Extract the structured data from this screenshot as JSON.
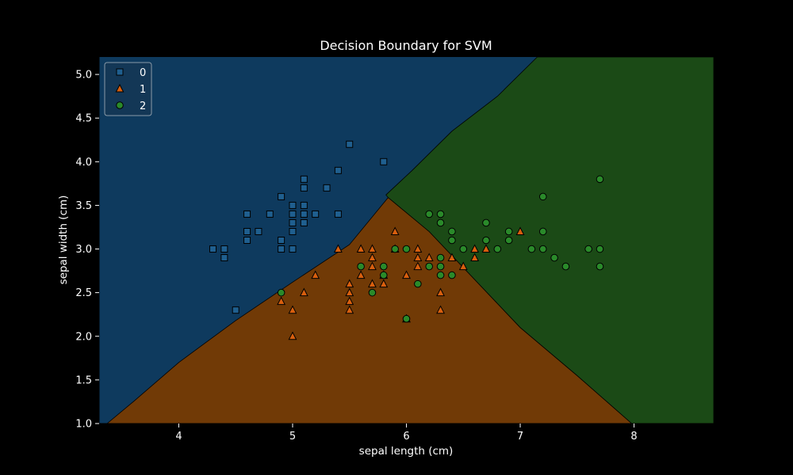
{
  "chart_data": {
    "type": "scatter",
    "title": "Decision Boundary for SVM",
    "xlabel": "sepal length (cm)",
    "ylabel": "sepal width (cm)",
    "xlim": [
      3.3,
      8.7
    ],
    "ylim": [
      1.0,
      5.2
    ],
    "xticks": [
      "4",
      "5",
      "6",
      "7",
      "8"
    ],
    "yticks": [
      "1.0",
      "1.5",
      "2.0",
      "2.5",
      "3.0",
      "3.5",
      "4.0",
      "4.5",
      "5.0"
    ],
    "legend_position": "top-left",
    "grid": false,
    "regions": [
      {
        "class": "0",
        "color": "#0e3a5e"
      },
      {
        "class": "1",
        "color": "#713a06"
      },
      {
        "class": "2",
        "color": "#1b4a16"
      }
    ],
    "boundaries": {
      "between_0_and_1": [
        [
          3.37,
          1.0
        ],
        [
          3.6,
          1.25
        ],
        [
          4.0,
          1.7
        ],
        [
          4.5,
          2.18
        ],
        [
          5.0,
          2.62
        ],
        [
          5.5,
          3.05
        ],
        [
          5.84,
          3.59
        ]
      ],
      "between_1_and_2": [
        [
          5.84,
          3.59
        ],
        [
          6.2,
          3.2
        ],
        [
          6.6,
          2.65
        ],
        [
          7.0,
          2.1
        ],
        [
          7.5,
          1.55
        ],
        [
          7.98,
          1.0
        ]
      ],
      "between_0_and_2": [
        [
          5.84,
          3.59
        ],
        [
          5.82,
          3.62
        ],
        [
          6.05,
          3.9
        ],
        [
          6.4,
          4.35
        ],
        [
          6.8,
          4.75
        ],
        [
          7.15,
          5.2
        ]
      ]
    },
    "series": [
      {
        "name": "0",
        "marker": "square",
        "color": "#1f5f8f",
        "points": [
          [
            4.3,
            3.0
          ],
          [
            4.4,
            3.0
          ],
          [
            4.4,
            2.9
          ],
          [
            4.5,
            2.3
          ],
          [
            4.6,
            3.4
          ],
          [
            4.6,
            3.2
          ],
          [
            4.6,
            3.1
          ],
          [
            4.7,
            3.2
          ],
          [
            4.8,
            3.4
          ],
          [
            4.9,
            3.6
          ],
          [
            4.9,
            3.1
          ],
          [
            4.9,
            3.0
          ],
          [
            5.0,
            3.5
          ],
          [
            5.0,
            3.4
          ],
          [
            5.0,
            3.3
          ],
          [
            5.0,
            3.2
          ],
          [
            5.0,
            3.0
          ],
          [
            5.1,
            3.8
          ],
          [
            5.1,
            3.7
          ],
          [
            5.1,
            3.5
          ],
          [
            5.1,
            3.4
          ],
          [
            5.1,
            3.3
          ],
          [
            5.2,
            3.4
          ],
          [
            5.3,
            3.7
          ],
          [
            5.4,
            3.9
          ],
          [
            5.4,
            3.4
          ],
          [
            5.5,
            4.2
          ],
          [
            5.8,
            4.0
          ]
        ]
      },
      {
        "name": "1",
        "marker": "triangle",
        "color": "#d85f0e",
        "points": [
          [
            4.9,
            2.4
          ],
          [
            5.0,
            2.3
          ],
          [
            5.0,
            2.0
          ],
          [
            5.1,
            2.5
          ],
          [
            5.2,
            2.7
          ],
          [
            5.4,
            3.0
          ],
          [
            5.5,
            2.6
          ],
          [
            5.5,
            2.5
          ],
          [
            5.5,
            2.4
          ],
          [
            5.5,
            2.3
          ],
          [
            5.6,
            3.0
          ],
          [
            5.6,
            2.7
          ],
          [
            5.7,
            3.0
          ],
          [
            5.7,
            2.9
          ],
          [
            5.7,
            2.8
          ],
          [
            5.7,
            2.6
          ],
          [
            5.8,
            2.7
          ],
          [
            5.8,
            2.6
          ],
          [
            5.9,
            3.2
          ],
          [
            5.9,
            3.0
          ],
          [
            6.0,
            2.7
          ],
          [
            6.0,
            2.2
          ],
          [
            6.1,
            3.0
          ],
          [
            6.1,
            2.9
          ],
          [
            6.1,
            2.8
          ],
          [
            6.2,
            2.9
          ],
          [
            6.3,
            2.5
          ],
          [
            6.3,
            2.3
          ],
          [
            6.4,
            2.9
          ],
          [
            6.5,
            2.8
          ],
          [
            6.6,
            3.0
          ],
          [
            6.6,
            2.9
          ],
          [
            6.7,
            3.0
          ],
          [
            7.0,
            3.2
          ]
        ]
      },
      {
        "name": "2",
        "marker": "circle",
        "color": "#2a8a2a",
        "points": [
          [
            4.9,
            2.5
          ],
          [
            5.6,
            2.8
          ],
          [
            5.7,
            2.5
          ],
          [
            5.8,
            2.8
          ],
          [
            5.8,
            2.7
          ],
          [
            5.9,
            3.0
          ],
          [
            6.0,
            3.0
          ],
          [
            6.0,
            2.2
          ],
          [
            6.1,
            2.6
          ],
          [
            6.2,
            3.4
          ],
          [
            6.2,
            2.8
          ],
          [
            6.3,
            3.4
          ],
          [
            6.3,
            3.3
          ],
          [
            6.3,
            2.9
          ],
          [
            6.3,
            2.8
          ],
          [
            6.3,
            2.7
          ],
          [
            6.4,
            3.2
          ],
          [
            6.4,
            3.1
          ],
          [
            6.4,
            2.7
          ],
          [
            6.5,
            3.0
          ],
          [
            6.7,
            3.3
          ],
          [
            6.7,
            3.1
          ],
          [
            6.8,
            3.0
          ],
          [
            6.9,
            3.2
          ],
          [
            6.9,
            3.1
          ],
          [
            7.1,
            3.0
          ],
          [
            7.2,
            3.6
          ],
          [
            7.2,
            3.2
          ],
          [
            7.2,
            3.0
          ],
          [
            7.3,
            2.9
          ],
          [
            7.4,
            2.8
          ],
          [
            7.6,
            3.0
          ],
          [
            7.7,
            3.8
          ],
          [
            7.7,
            3.0
          ],
          [
            7.7,
            2.8
          ]
        ]
      }
    ]
  }
}
